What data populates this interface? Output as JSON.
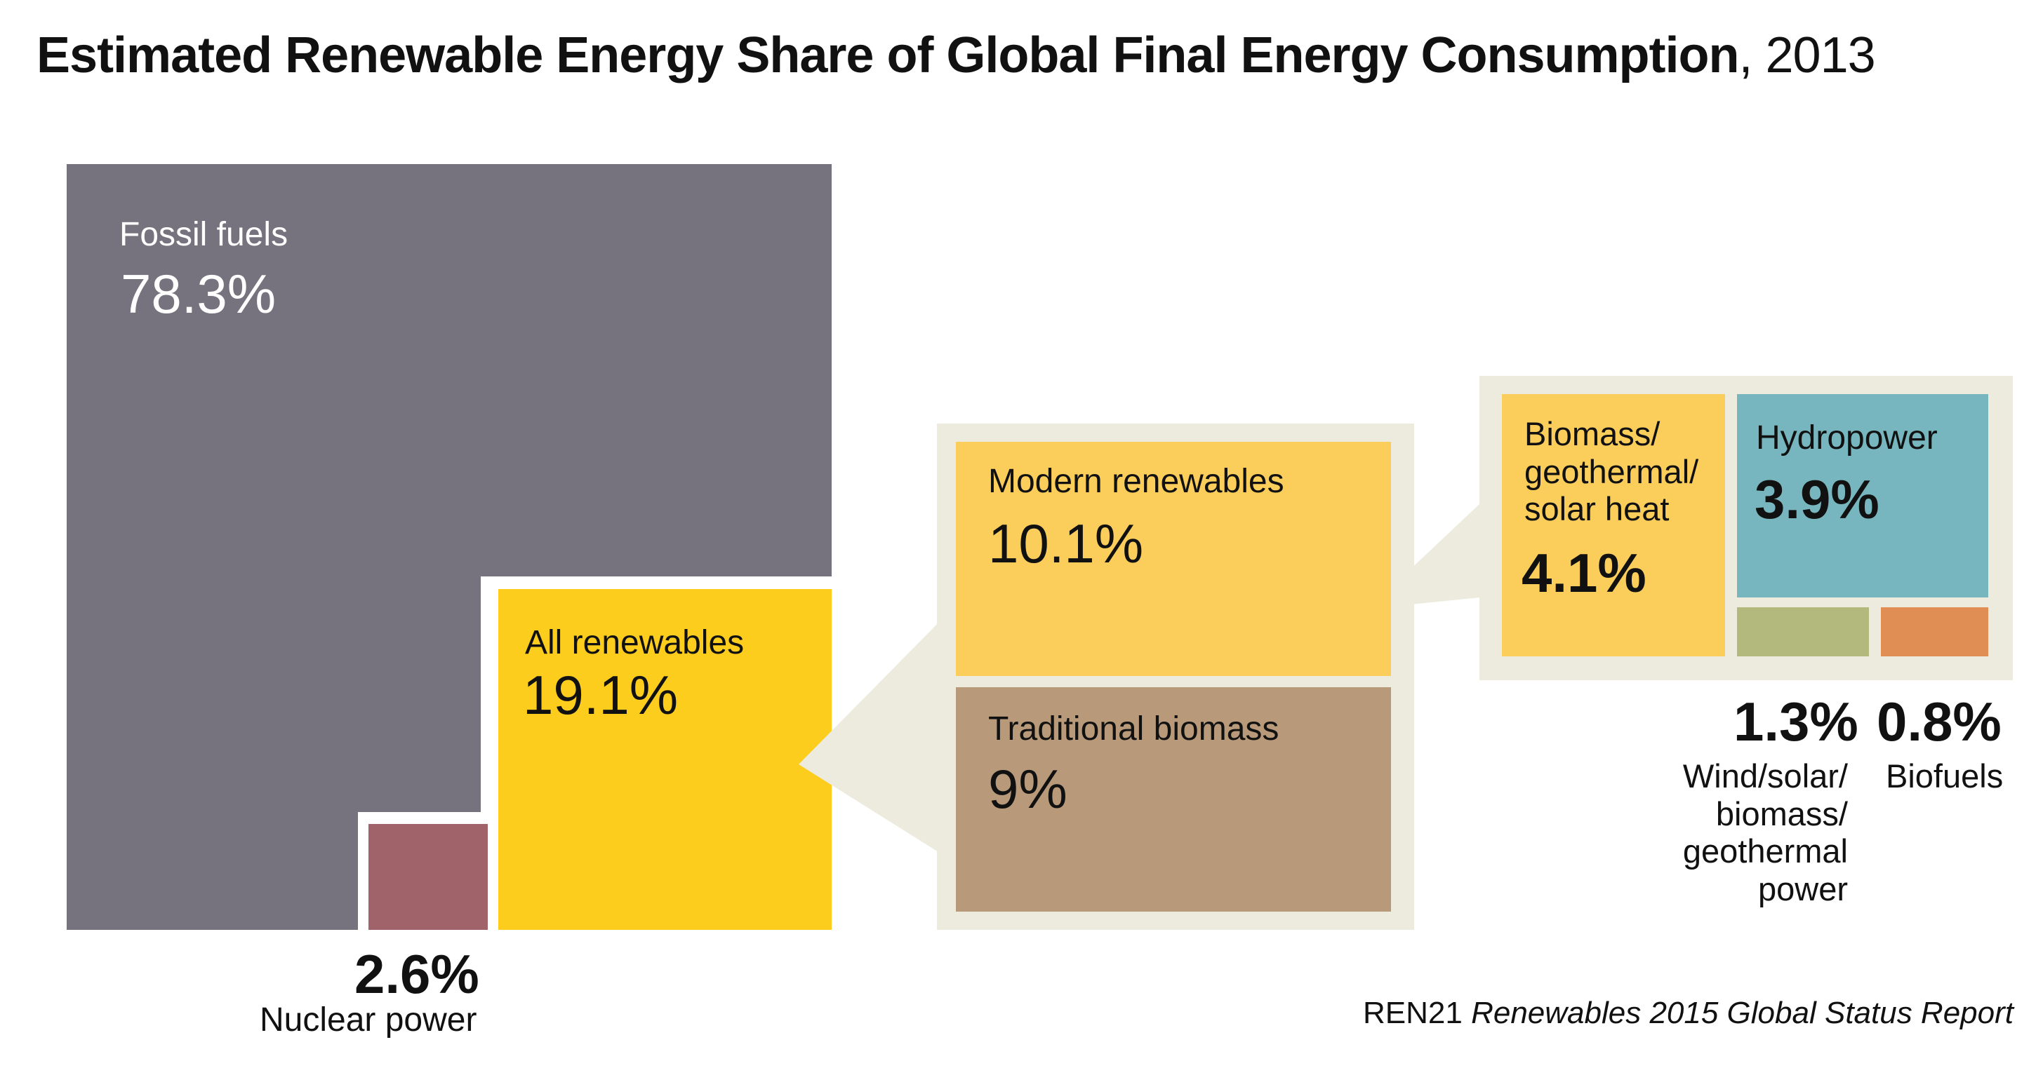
{
  "title": {
    "bold": "Estimated Renewable Energy Share of Global Final Energy Consumption",
    "rest": ", 2013"
  },
  "colors": {
    "fossil": "#76737e",
    "nuclear": "#a0636a",
    "all_renewables": "#fccd1c",
    "modern": "#fbce5b",
    "traditional": "#b89a7a",
    "biomass_heat": "#fbce5b",
    "hydropower": "#77b6be",
    "wind_solar": "#b3b87c",
    "biofuels": "#e08e53",
    "callout_bg": "#ecebdd"
  },
  "chart_data": {
    "type": "treemap",
    "title": "Estimated Renewable Energy Share of Global Final Energy Consumption, 2013",
    "unit": "%",
    "items": [
      {
        "id": "fossil",
        "label": "Fossil fuels",
        "value": 78.3,
        "display": "78.3%"
      },
      {
        "id": "nuclear",
        "label": "Nuclear power",
        "value": 2.6,
        "display": "2.6%"
      },
      {
        "id": "all_renewables",
        "label": "All renewables",
        "value": 19.1,
        "display": "19.1%"
      },
      {
        "id": "modern",
        "label": "Modern renewables",
        "value": 10.1,
        "display": "10.1%",
        "parent": "all_renewables"
      },
      {
        "id": "traditional",
        "label": "Traditional biomass",
        "value": 9,
        "display": "9%",
        "parent": "all_renewables"
      },
      {
        "id": "biomass_heat",
        "label": "Biomass/\ngeothermal/\nsolar heat",
        "value": 4.1,
        "display": "4.1%",
        "parent": "modern"
      },
      {
        "id": "hydropower",
        "label": "Hydropower",
        "value": 3.9,
        "display": "3.9%",
        "parent": "modern"
      },
      {
        "id": "wind_solar",
        "label": "Wind/solar/\nbiomass/\ngeothermal\npower",
        "value": 1.3,
        "display": "1.3%",
        "parent": "modern"
      },
      {
        "id": "biofuels",
        "label": "Biofuels",
        "value": 0.8,
        "display": "0.8%",
        "parent": "modern"
      }
    ]
  },
  "source": {
    "org": "REN21",
    "report": "Renewables 2015 Global Status Report"
  }
}
